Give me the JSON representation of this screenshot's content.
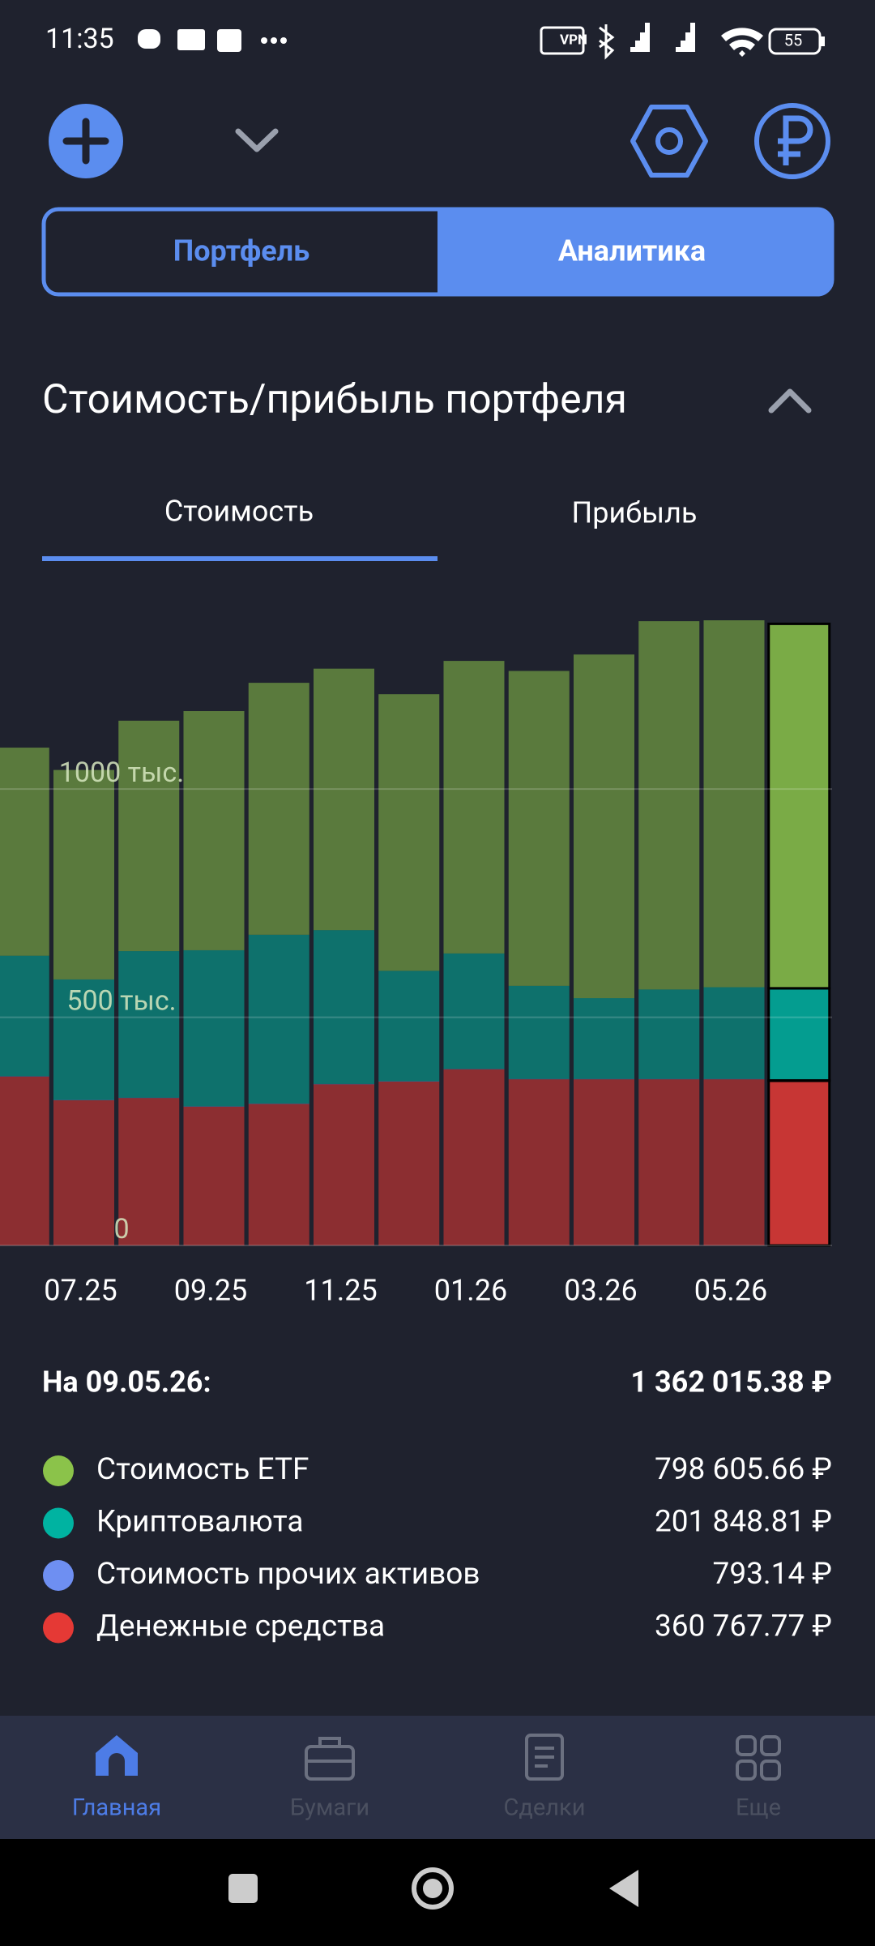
{
  "status_bar": {
    "time": "11:35",
    "vpn": "VPN",
    "battery": "55"
  },
  "tabs": {
    "left": "Портфель",
    "right": "Аналитика"
  },
  "section": {
    "title": "Стоимость/прибыль портфеля",
    "tab_left": "Стоимость",
    "tab_right": "Прибыль"
  },
  "chart_data": {
    "type": "stacked_bar",
    "categories": [
      null,
      "07.25",
      null,
      "09.25",
      null,
      "11.25",
      null,
      "01.26",
      null,
      "03.26",
      null,
      "05.26",
      null
    ],
    "series": [
      {
        "name": "Стоимость ETF",
        "color": "#8bc34a",
        "values": [
          456000,
          459000,
          505000,
          524000,
          552000,
          573000,
          606000,
          641000,
          690000,
          753000,
          807000,
          804000,
          798605.66
        ]
      },
      {
        "name": "Криптовалюта",
        "color": "#00b3a1",
        "values": [
          264000,
          264000,
          321000,
          342000,
          370000,
          337000,
          242000,
          253000,
          204000,
          177000,
          196000,
          201000,
          201848.81
        ]
      },
      {
        "name": "Стоимость прочих активов",
        "color": "#6e8ff2",
        "values": [
          800,
          800,
          800,
          800,
          800,
          800,
          800,
          800,
          800,
          800,
          800,
          800,
          793.14
        ]
      },
      {
        "name": "Денежные средства",
        "color": "#e53935",
        "values": [
          370000,
          318000,
          323000,
          304000,
          310000,
          353000,
          359000,
          386000,
          364000,
          364000,
          364000,
          364000,
          360767.77
        ]
      }
    ],
    "ylim": [
      0,
      1400000
    ],
    "yticks": [
      {
        "value": 0,
        "label": "0"
      },
      {
        "value": 500000,
        "label": "500 тыс."
      },
      {
        "value": 1000000,
        "label": "1000 тыс."
      }
    ],
    "grid": true
  },
  "summary": {
    "date": "На 09.05.26:",
    "total": "1 362 015.38 ₽",
    "values": [
      "798 605.66 ₽",
      "201 848.81 ₽",
      "793.14 ₽",
      "360 767.77 ₽"
    ]
  },
  "nav": [
    "Главная",
    "Бумаги",
    "Сделки",
    "Еще"
  ]
}
